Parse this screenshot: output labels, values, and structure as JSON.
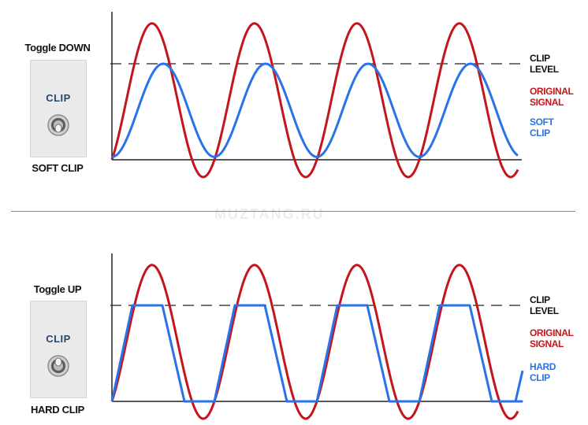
{
  "watermark": "MUZTANG.RU",
  "panels": [
    {
      "toggle_title": "Toggle DOWN",
      "plate_label": "CLIP",
      "mode_label": "SOFT CLIP",
      "clip_level_label": [
        "CLIP",
        "LEVEL"
      ],
      "original_label": [
        "ORIGINAL",
        "SIGNAL"
      ],
      "clipped_label": [
        "SOFT",
        "CLIP"
      ],
      "clip_type": "soft",
      "toggle_position": "down"
    },
    {
      "toggle_title": "Toggle UP",
      "plate_label": "CLIP",
      "mode_label": "HARD CLIP",
      "clip_level_label": [
        "CLIP",
        "LEVEL"
      ],
      "original_label": [
        "ORIGINAL",
        "SIGNAL"
      ],
      "clipped_label": [
        "HARD",
        "CLIP"
      ],
      "clip_type": "hard",
      "toggle_position": "up"
    }
  ],
  "chart_data": {
    "type": "line",
    "cycles": 4,
    "clip_level": 1.0,
    "original_amplitude": 1.42,
    "soft_clip_amplitude": 1.0,
    "colors": {
      "original": "#c4151c",
      "clipped": "#2a72e8",
      "axis": "#222222",
      "clip_line": "#222222"
    }
  }
}
